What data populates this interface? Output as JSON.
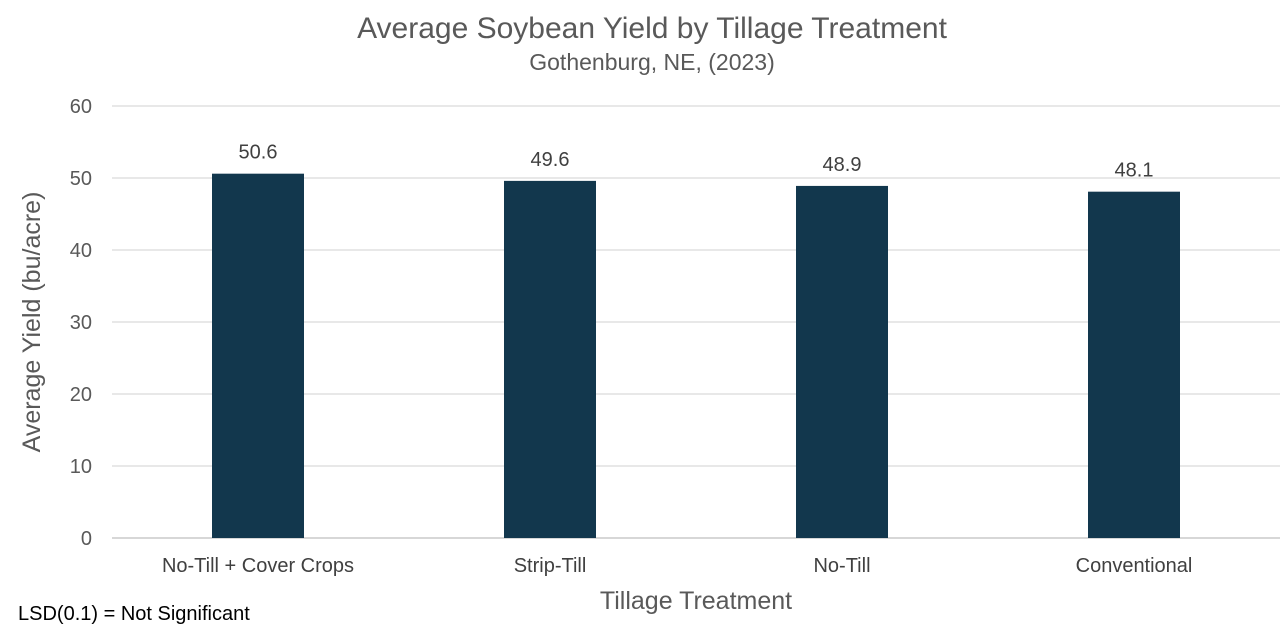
{
  "chart_data": {
    "type": "bar",
    "title": "Average Soybean Yield by Tillage Treatment",
    "subtitle": "Gothenburg, NE, (2023)",
    "xlabel": "Tillage Treatment",
    "ylabel": "Average Yield (bu/acre)",
    "categories": [
      "No-Till + Cover Crops",
      "Strip-Till",
      "No-Till",
      "Conventional"
    ],
    "values": [
      50.6,
      49.6,
      48.9,
      48.1
    ],
    "data_labels": [
      "50.6",
      "49.6",
      "48.9",
      "48.1"
    ],
    "ylim": [
      0,
      60
    ],
    "yticks": [
      0,
      10,
      20,
      30,
      40,
      50,
      60
    ],
    "grid": true,
    "legend": "none",
    "bar_color": "#12374D",
    "annotation": "LSD(0.1) = Not Significant"
  }
}
